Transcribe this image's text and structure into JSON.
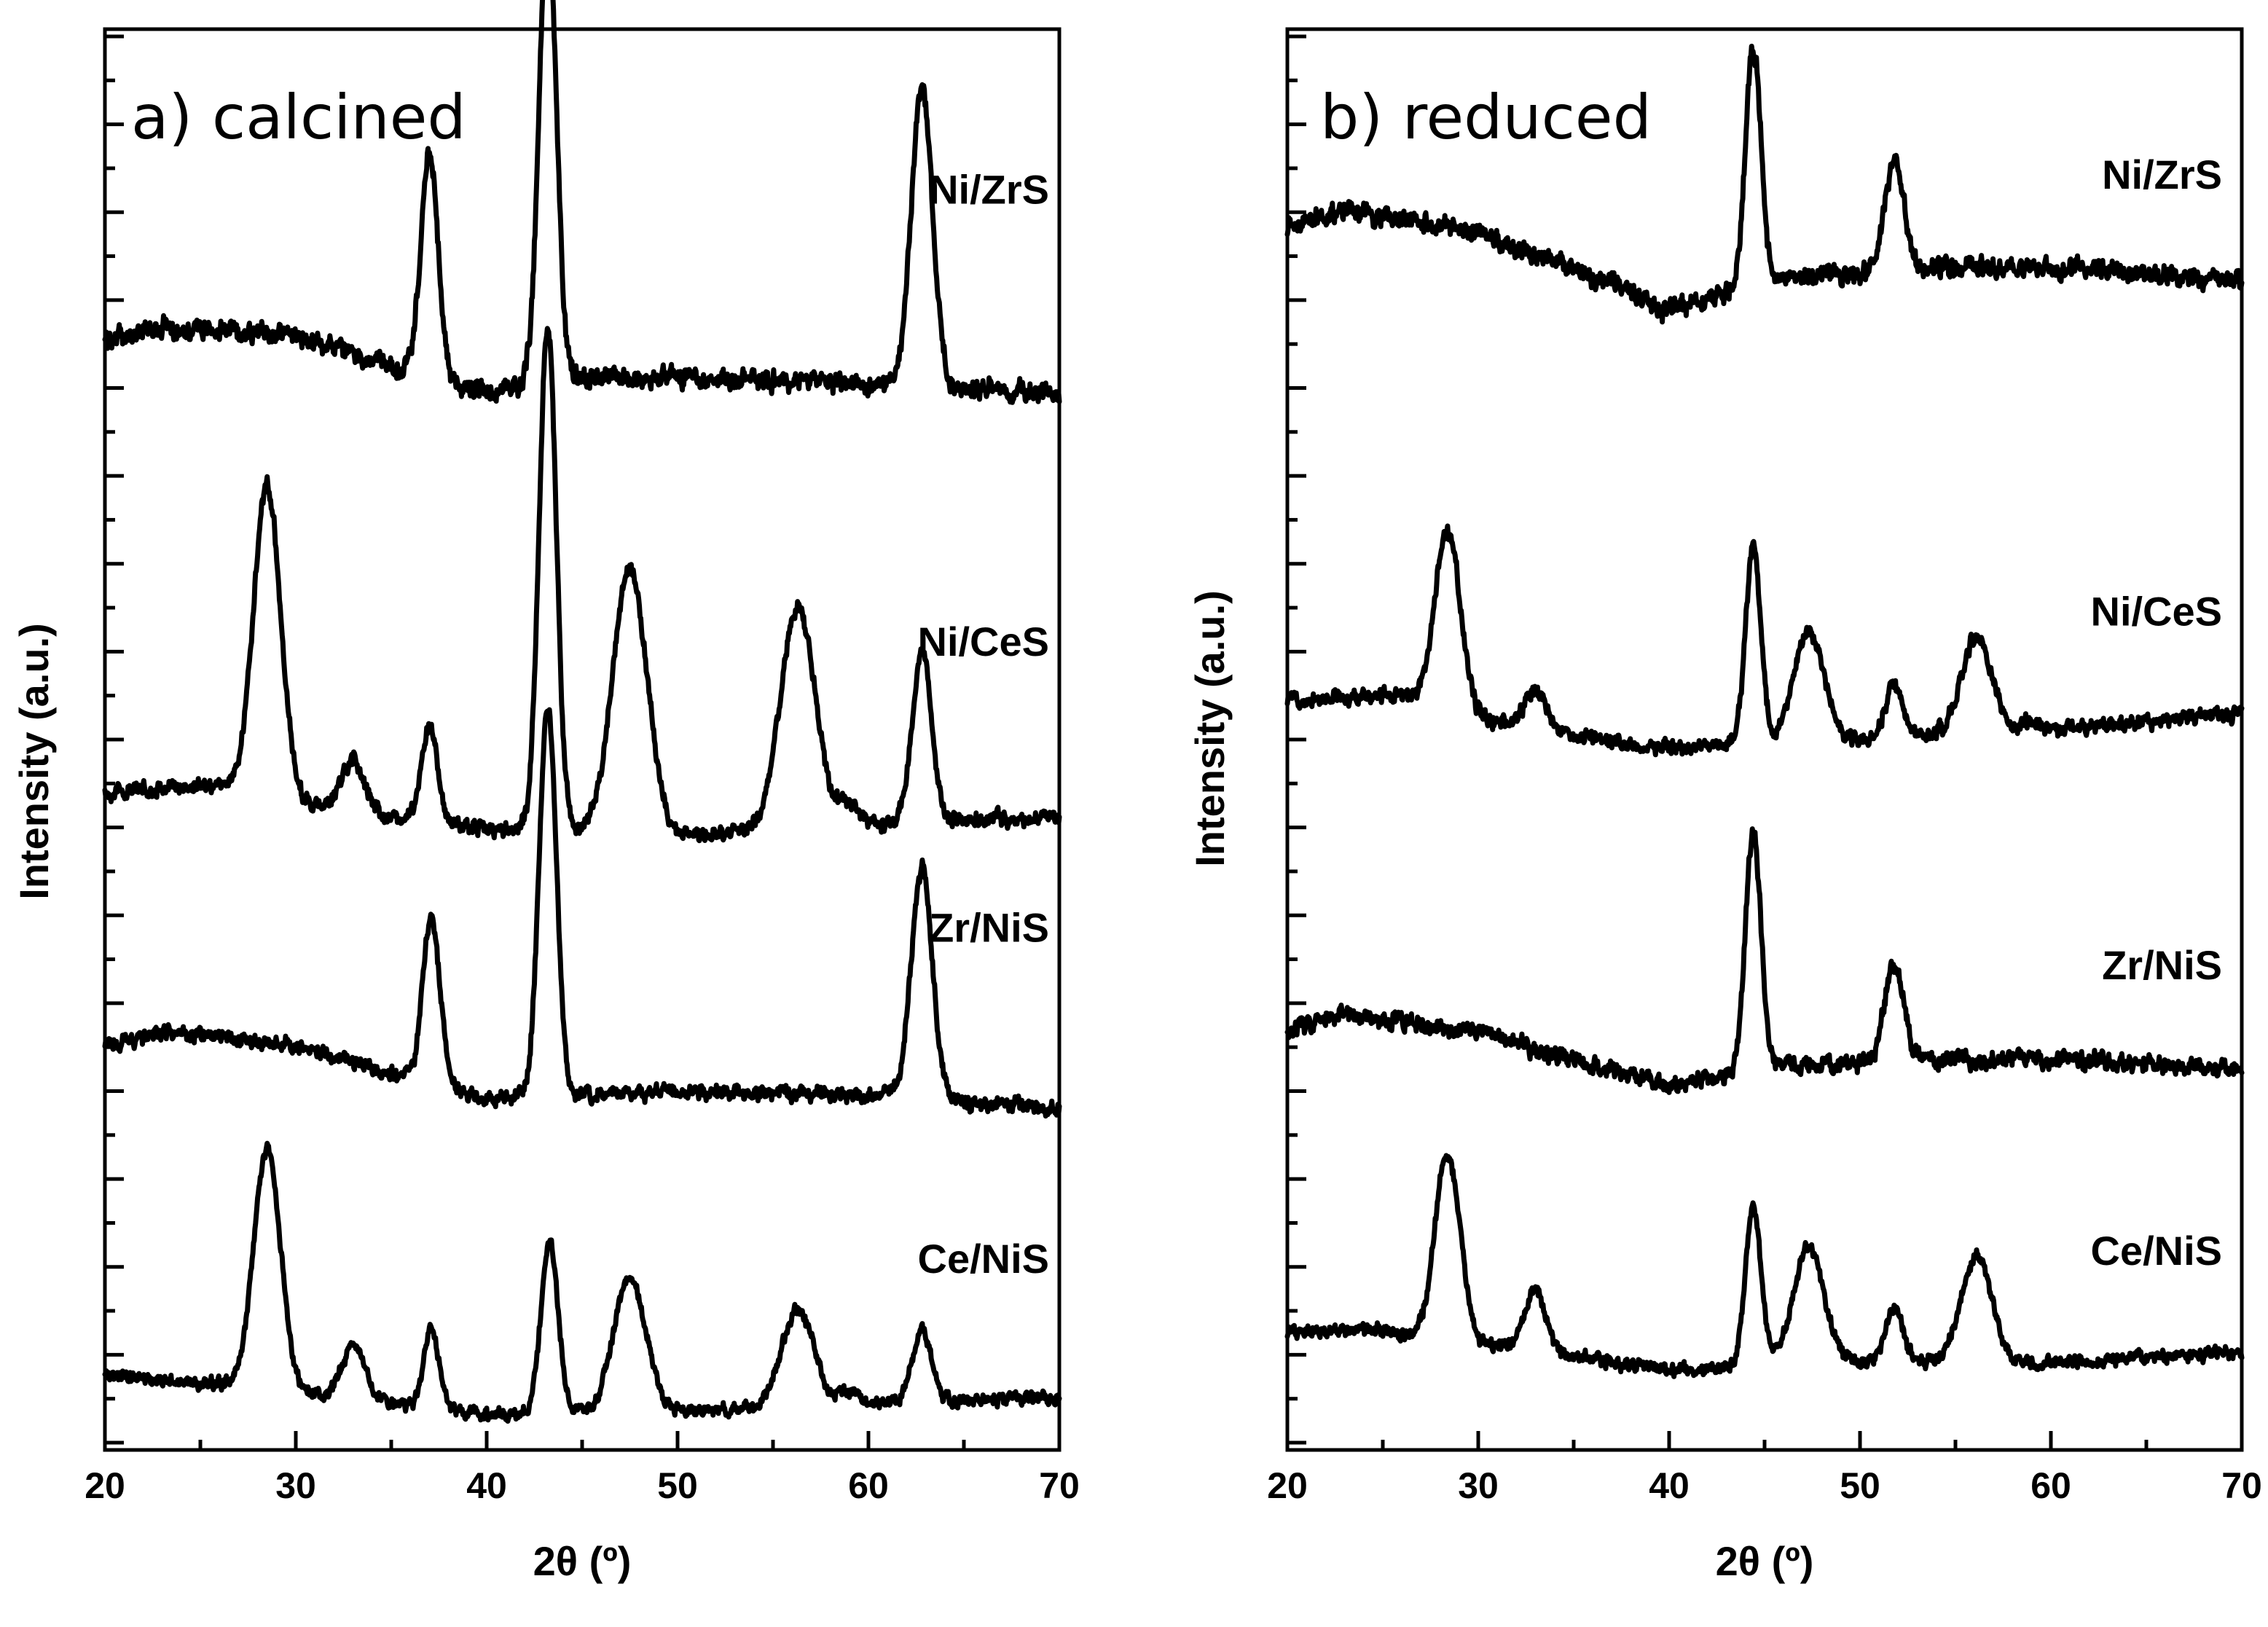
{
  "chart_data": [
    {
      "type": "line",
      "title": "a) calcined",
      "xlabel": "2θ (º)",
      "ylabel": "Intensity (a.u.)",
      "xlim": [
        20,
        70
      ],
      "xticks": [
        20,
        30,
        40,
        50,
        60,
        70
      ],
      "ylim": [
        0,
        8
      ],
      "y_ticks_shown": false,
      "series": [
        {
          "name": "Ni/ZrS",
          "offset": 5.9,
          "background": [
            [
              20,
              0.35
            ],
            [
              23,
              0.42
            ],
            [
              30,
              0.38
            ],
            [
              35,
              0.2
            ],
            [
              40,
              0.05
            ],
            [
              45,
              0.15
            ],
            [
              55,
              0.12
            ],
            [
              70,
              0.05
            ]
          ],
          "peaks": [
            {
              "x": 37.0,
              "height": 1.25,
              "width": 0.45
            },
            {
              "x": 43.2,
              "height": 2.6,
              "width": 0.45
            },
            {
              "x": 62.8,
              "height": 1.7,
              "width": 0.55
            }
          ],
          "noise": 0.08
        },
        {
          "name": "Ni/CeS",
          "offset": 3.45,
          "background": [
            [
              20,
              0.25
            ],
            [
              26,
              0.3
            ],
            [
              32,
              0.15
            ],
            [
              40,
              0.05
            ],
            [
              50,
              0.0
            ],
            [
              60,
              0.08
            ],
            [
              70,
              0.12
            ]
          ],
          "peaks": [
            {
              "x": 28.5,
              "height": 1.75,
              "width": 0.7
            },
            {
              "x": 33.0,
              "height": 0.3,
              "width": 0.6
            },
            {
              "x": 37.0,
              "height": 0.55,
              "width": 0.4
            },
            {
              "x": 43.2,
              "height": 2.85,
              "width": 0.45
            },
            {
              "x": 47.5,
              "height": 1.5,
              "width": 0.9
            },
            {
              "x": 56.3,
              "height": 1.25,
              "width": 0.9
            },
            {
              "x": 59.0,
              "height": 0.12,
              "width": 0.5
            },
            {
              "x": 62.8,
              "height": 0.95,
              "width": 0.5
            }
          ],
          "noise": 0.06
        },
        {
          "name": "Zr/NiS",
          "offset": 1.9,
          "background": [
            [
              20,
              0.38
            ],
            [
              23,
              0.45
            ],
            [
              30,
              0.38
            ],
            [
              35,
              0.22
            ],
            [
              40,
              0.08
            ],
            [
              50,
              0.12
            ],
            [
              60,
              0.1
            ],
            [
              70,
              0.02
            ]
          ],
          "peaks": [
            {
              "x": 37.1,
              "height": 0.95,
              "width": 0.45
            },
            {
              "x": 43.2,
              "height": 2.2,
              "width": 0.45
            },
            {
              "x": 62.8,
              "height": 1.3,
              "width": 0.55
            }
          ],
          "noise": 0.06
        },
        {
          "name": "Ce/NiS",
          "offset": 0.2,
          "background": [
            [
              20,
              0.22
            ],
            [
              25,
              0.18
            ],
            [
              32,
              0.1
            ],
            [
              40,
              0.0
            ],
            [
              50,
              0.02
            ],
            [
              60,
              0.05
            ],
            [
              70,
              0.1
            ]
          ],
          "peaks": [
            {
              "x": 28.5,
              "height": 1.35,
              "width": 0.7
            },
            {
              "x": 33.0,
              "height": 0.3,
              "width": 0.6
            },
            {
              "x": 37.1,
              "height": 0.45,
              "width": 0.4
            },
            {
              "x": 43.3,
              "height": 0.95,
              "width": 0.45
            },
            {
              "x": 47.5,
              "height": 0.75,
              "width": 0.85
            },
            {
              "x": 56.3,
              "height": 0.55,
              "width": 0.85
            },
            {
              "x": 59.0,
              "height": 0.08,
              "width": 0.5
            },
            {
              "x": 62.8,
              "height": 0.42,
              "width": 0.5
            }
          ],
          "noise": 0.05
        }
      ]
    },
    {
      "type": "line",
      "title": "b) reduced",
      "xlabel": "2θ (º)",
      "ylabel": "Intensity (a.u.)",
      "xlim": [
        20,
        70
      ],
      "xticks": [
        20,
        30,
        40,
        50,
        60,
        70
      ],
      "ylim": [
        0,
        8
      ],
      "y_ticks_shown": false,
      "series": [
        {
          "name": "Ni/ZrS",
          "offset": 6.3,
          "background": [
            [
              20,
              0.6
            ],
            [
              23,
              0.68
            ],
            [
              30,
              0.55
            ],
            [
              35,
              0.35
            ],
            [
              40,
              0.12
            ],
            [
              46,
              0.3
            ],
            [
              55,
              0.35
            ],
            [
              62,
              0.35
            ],
            [
              70,
              0.28
            ]
          ],
          "peaks": [
            {
              "x": 44.4,
              "height": 1.35,
              "width": 0.4
            },
            {
              "x": 51.8,
              "height": 0.65,
              "width": 0.5
            }
          ],
          "noise": 0.08
        },
        {
          "name": "Ni/CeS",
          "offset": 3.95,
          "background": [
            [
              20,
              0.28
            ],
            [
              26,
              0.3
            ],
            [
              32,
              0.12
            ],
            [
              40,
              0.0
            ],
            [
              50,
              0.05
            ],
            [
              60,
              0.1
            ],
            [
              70,
              0.2
            ]
          ],
          "peaks": [
            {
              "x": 28.4,
              "height": 1.0,
              "width": 0.65
            },
            {
              "x": 33.0,
              "height": 0.22,
              "width": 0.55
            },
            {
              "x": 44.4,
              "height": 1.1,
              "width": 0.4
            },
            {
              "x": 47.3,
              "height": 0.62,
              "width": 0.8
            },
            {
              "x": 51.8,
              "height": 0.3,
              "width": 0.45
            },
            {
              "x": 56.1,
              "height": 0.55,
              "width": 0.8
            },
            {
              "x": 59.0,
              "height": 0.06,
              "width": 0.5
            }
          ],
          "noise": 0.06
        },
        {
          "name": "Zr/NiS",
          "offset": 2.05,
          "background": [
            [
              20,
              0.32
            ],
            [
              23,
              0.4
            ],
            [
              30,
              0.3
            ],
            [
              35,
              0.15
            ],
            [
              40,
              0.0
            ],
            [
              46,
              0.12
            ],
            [
              55,
              0.15
            ],
            [
              62,
              0.15
            ],
            [
              70,
              0.08
            ]
          ],
          "peaks": [
            {
              "x": 44.4,
              "height": 1.35,
              "width": 0.4
            },
            {
              "x": 51.8,
              "height": 0.55,
              "width": 0.5
            }
          ],
          "noise": 0.07
        },
        {
          "name": "Ce/NiS",
          "offset": 0.45,
          "background": [
            [
              20,
              0.22
            ],
            [
              25,
              0.22
            ],
            [
              32,
              0.12
            ],
            [
              40,
              0.0
            ],
            [
              50,
              0.05
            ],
            [
              60,
              0.04
            ],
            [
              70,
              0.1
            ]
          ],
          "peaks": [
            {
              "x": 28.4,
              "height": 1.05,
              "width": 0.65
            },
            {
              "x": 33.0,
              "height": 0.35,
              "width": 0.55
            },
            {
              "x": 44.4,
              "height": 0.9,
              "width": 0.4
            },
            {
              "x": 47.3,
              "height": 0.65,
              "width": 0.8
            },
            {
              "x": 51.8,
              "height": 0.3,
              "width": 0.45
            },
            {
              "x": 56.1,
              "height": 0.6,
              "width": 0.8
            }
          ],
          "noise": 0.05
        }
      ]
    }
  ]
}
